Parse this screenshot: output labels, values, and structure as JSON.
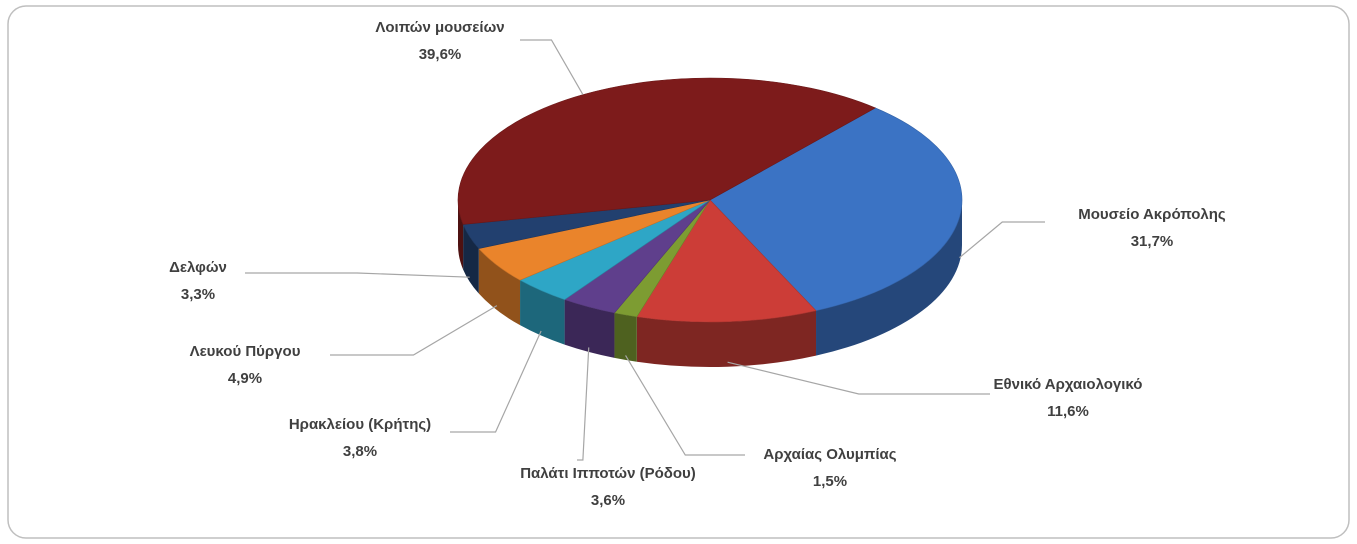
{
  "chart_data": {
    "type": "pie3d",
    "categories": [
      "Μουσείο Ακρόπολης",
      "Εθνικό Αρχαιολογικό",
      "Αρχαίας Ολυμπίας",
      "Παλάτι Ιπποτών (Ρόδου)",
      "Ηρακλείου (Κρήτης)",
      "Λευκού Πύργου",
      "Δελφών",
      "Λοιπών μουσείων"
    ],
    "values": [
      31.7,
      11.6,
      1.5,
      3.6,
      3.8,
      4.9,
      3.3,
      39.6
    ],
    "value_labels": [
      "31,7%",
      "11,6%",
      "1,5%",
      "3,6%",
      "3,8%",
      "4,9%",
      "3,3%",
      "39,6%"
    ],
    "colors": [
      "#3b73c4",
      "#cc3d37",
      "#7d9c32",
      "#5f3f8c",
      "#2ea6c6",
      "#ea842b",
      "#22406f",
      "#7d1b1b"
    ]
  }
}
